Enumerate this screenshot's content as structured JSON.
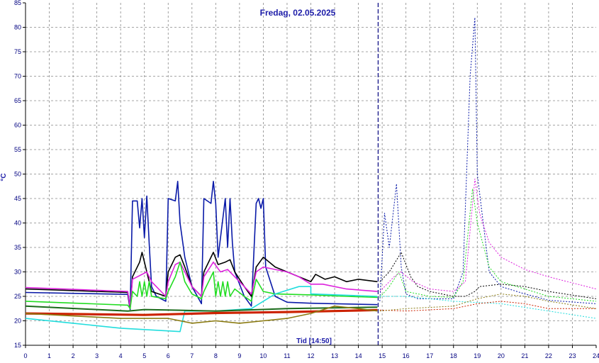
{
  "chart_data": {
    "type": "line",
    "title": "Fredag, 02.05.2025",
    "ylabel": "°C",
    "xlabel": "Tid [14:50]",
    "xlim": [
      0,
      24
    ],
    "ylim": [
      15,
      85
    ],
    "x_ticks": [
      "0",
      "1",
      "2",
      "3",
      "4",
      "5",
      "6",
      "7",
      "8",
      "9",
      "10",
      "11",
      "12",
      "13",
      "14",
      "15",
      "16",
      "17",
      "18",
      "19",
      "20",
      "21",
      "22",
      "23",
      "24"
    ],
    "y_ticks": [
      "15",
      "20",
      "25",
      "30",
      "35",
      "40",
      "45",
      "50",
      "55",
      "60",
      "65",
      "70",
      "75",
      "80",
      "85"
    ],
    "grid": true,
    "now_marker": 14.83,
    "series": [
      {
        "color": "#0a1aa8",
        "values": [
          [
            0,
            25.8
          ],
          [
            4.3,
            25.4
          ],
          [
            4.4,
            22.3
          ],
          [
            4.5,
            44.5
          ],
          [
            4.7,
            44.5
          ],
          [
            4.8,
            39
          ],
          [
            4.9,
            45
          ],
          [
            5.0,
            37
          ],
          [
            5.1,
            45.5
          ],
          [
            5.2,
            36
          ],
          [
            5.3,
            27
          ],
          [
            5.5,
            25
          ],
          [
            5.9,
            24
          ],
          [
            6.0,
            45
          ],
          [
            6.3,
            44.5
          ],
          [
            6.4,
            48.5
          ],
          [
            6.5,
            40
          ],
          [
            6.7,
            33
          ],
          [
            7.0,
            27
          ],
          [
            7.4,
            23.5
          ],
          [
            7.5,
            45
          ],
          [
            7.8,
            44
          ],
          [
            7.9,
            48.5
          ],
          [
            8.0,
            44
          ],
          [
            8.1,
            33
          ],
          [
            8.4,
            45
          ],
          [
            8.5,
            35
          ],
          [
            8.6,
            45
          ],
          [
            8.7,
            36
          ],
          [
            8.8,
            30
          ],
          [
            9.2,
            25
          ],
          [
            9.5,
            23
          ],
          [
            9.7,
            44
          ],
          [
            9.8,
            45
          ],
          [
            9.9,
            43
          ],
          [
            10.0,
            45
          ],
          [
            10.1,
            31
          ],
          [
            10.5,
            25
          ],
          [
            11.0,
            23.8
          ],
          [
            12.0,
            23.6
          ],
          [
            14.8,
            23.3
          ]
        ]
      },
      {
        "color": "#000000",
        "values": [
          [
            0,
            26.5
          ],
          [
            4.3,
            25.8
          ],
          [
            4.4,
            22.5
          ],
          [
            4.5,
            29
          ],
          [
            4.8,
            32
          ],
          [
            4.9,
            34
          ],
          [
            5.1,
            30
          ],
          [
            5.3,
            26
          ],
          [
            5.9,
            25
          ],
          [
            6.0,
            30
          ],
          [
            6.3,
            33
          ],
          [
            6.5,
            33.5
          ],
          [
            6.7,
            31
          ],
          [
            7.0,
            27
          ],
          [
            7.4,
            25
          ],
          [
            7.5,
            30
          ],
          [
            7.9,
            34
          ],
          [
            8.1,
            31.5
          ],
          [
            8.4,
            32
          ],
          [
            8.6,
            32.5
          ],
          [
            8.8,
            30
          ],
          [
            9.2,
            27
          ],
          [
            9.5,
            25
          ],
          [
            9.7,
            31
          ],
          [
            10.0,
            33
          ],
          [
            10.5,
            31
          ],
          [
            11.0,
            30
          ],
          [
            11.5,
            29
          ],
          [
            12.0,
            28
          ],
          [
            12.2,
            29.5
          ],
          [
            12.6,
            28.5
          ],
          [
            13.0,
            29
          ],
          [
            13.5,
            28
          ],
          [
            14.0,
            28.5
          ],
          [
            14.8,
            28
          ]
        ]
      },
      {
        "color": "#dd22dd",
        "values": [
          [
            0,
            26.8
          ],
          [
            4.3,
            26.0
          ],
          [
            4.4,
            22.8
          ],
          [
            4.5,
            28.5
          ],
          [
            5.1,
            30
          ],
          [
            5.3,
            28
          ],
          [
            5.9,
            25
          ],
          [
            6.0,
            28
          ],
          [
            6.3,
            31.5
          ],
          [
            6.5,
            32
          ],
          [
            6.7,
            30
          ],
          [
            7.0,
            27
          ],
          [
            7.4,
            25
          ],
          [
            7.5,
            29
          ],
          [
            7.9,
            32
          ],
          [
            8.2,
            30
          ],
          [
            8.5,
            30.5
          ],
          [
            8.8,
            29
          ],
          [
            9.2,
            27
          ],
          [
            9.5,
            25.5
          ],
          [
            9.7,
            30
          ],
          [
            10.0,
            31
          ],
          [
            10.5,
            30.5
          ],
          [
            11.0,
            30
          ],
          [
            11.5,
            29
          ],
          [
            12.0,
            27.5
          ],
          [
            12.5,
            27.5
          ],
          [
            13.5,
            26.5
          ],
          [
            14.8,
            26
          ]
        ]
      },
      {
        "color": "#22dd22",
        "values": [
          [
            0,
            24
          ],
          [
            4.3,
            23.2
          ],
          [
            4.4,
            22.5
          ],
          [
            4.5,
            26
          ],
          [
            4.7,
            25
          ],
          [
            4.8,
            28
          ],
          [
            4.9,
            25
          ],
          [
            5.0,
            28
          ],
          [
            5.1,
            25
          ],
          [
            5.2,
            28
          ],
          [
            5.3,
            25
          ],
          [
            5.9,
            24.5
          ],
          [
            6.0,
            26
          ],
          [
            6.3,
            29
          ],
          [
            6.5,
            32
          ],
          [
            6.7,
            28
          ],
          [
            7.0,
            25.5
          ],
          [
            7.4,
            24.5
          ],
          [
            7.5,
            26
          ],
          [
            7.9,
            30
          ],
          [
            8.0,
            25
          ],
          [
            8.1,
            28
          ],
          [
            8.2,
            25
          ],
          [
            8.3,
            28
          ],
          [
            8.4,
            25
          ],
          [
            8.5,
            28
          ],
          [
            8.6,
            25
          ],
          [
            8.8,
            26.5
          ],
          [
            9.2,
            25
          ],
          [
            9.5,
            24
          ],
          [
            9.7,
            28.5
          ],
          [
            10.0,
            26
          ],
          [
            10.5,
            25.5
          ],
          [
            12.0,
            25.3
          ],
          [
            13.5,
            25
          ],
          [
            14.8,
            24.8
          ]
        ]
      },
      {
        "color": "#22dddd",
        "values": [
          [
            0,
            20.5
          ],
          [
            2.0,
            19.5
          ],
          [
            4.0,
            18.5
          ],
          [
            6.5,
            17.8
          ],
          [
            6.7,
            22.0
          ],
          [
            8.0,
            22.0
          ],
          [
            9.5,
            22.5
          ],
          [
            10.5,
            25.5
          ],
          [
            11.5,
            27.0
          ],
          [
            12.0,
            27.0
          ],
          [
            12.0,
            25.5
          ],
          [
            14.8,
            25.0
          ]
        ]
      },
      {
        "color": "#cc2200",
        "values": [
          [
            0,
            21.5
          ],
          [
            5.0,
            21.2
          ],
          [
            8.0,
            21.6
          ],
          [
            11.0,
            21.8
          ],
          [
            13.0,
            22.0
          ],
          [
            14.8,
            22.2
          ]
        ]
      },
      {
        "color": "#1a6a1a",
        "values": [
          [
            0,
            23
          ],
          [
            4.3,
            22.0
          ],
          [
            5.0,
            22.3
          ],
          [
            8.0,
            22.0
          ],
          [
            11.0,
            22.5
          ],
          [
            14.8,
            22.8
          ]
        ]
      },
      {
        "color": "#8a7a10",
        "values": [
          [
            0,
            21.5
          ],
          [
            4.0,
            20.5
          ],
          [
            6.0,
            20.5
          ],
          [
            7.0,
            19.5
          ],
          [
            8.0,
            20.0
          ],
          [
            9.0,
            19.5
          ],
          [
            10.0,
            20.0
          ],
          [
            11.0,
            20.5
          ],
          [
            12.0,
            21.5
          ],
          [
            13.0,
            23.0
          ],
          [
            14.0,
            22.5
          ],
          [
            14.8,
            22.0
          ]
        ]
      }
    ],
    "forecast": [
      {
        "color": "#0a1aa8",
        "values": [
          [
            14.9,
            24
          ],
          [
            15.1,
            42
          ],
          [
            15.3,
            35
          ],
          [
            15.6,
            48
          ],
          [
            15.8,
            31
          ],
          [
            16.0,
            25.5
          ],
          [
            16.5,
            24.5
          ],
          [
            18.0,
            24.5
          ],
          [
            18.4,
            30
          ],
          [
            18.7,
            70
          ],
          [
            18.9,
            82
          ],
          [
            19.0,
            50
          ],
          [
            19.5,
            30
          ],
          [
            20.0,
            27
          ],
          [
            21.0,
            25.5
          ],
          [
            22.0,
            24.2
          ],
          [
            24,
            23.5
          ]
        ]
      },
      {
        "color": "#000000",
        "values": [
          [
            14.9,
            28
          ],
          [
            15.3,
            30
          ],
          [
            15.8,
            34
          ],
          [
            16.2,
            29
          ],
          [
            16.5,
            27
          ],
          [
            17.0,
            26
          ],
          [
            18.0,
            25
          ],
          [
            18.5,
            25
          ],
          [
            18.9,
            26
          ],
          [
            19.1,
            27
          ],
          [
            20.0,
            27.5
          ],
          [
            21.0,
            27
          ],
          [
            22.0,
            26
          ],
          [
            24,
            24.5
          ]
        ]
      },
      {
        "color": "#dd22dd",
        "values": [
          [
            14.9,
            26
          ],
          [
            15.5,
            29
          ],
          [
            15.8,
            30
          ],
          [
            16.3,
            28
          ],
          [
            17.0,
            26.5
          ],
          [
            18.0,
            26
          ],
          [
            18.5,
            28
          ],
          [
            18.9,
            49
          ],
          [
            19.1,
            42
          ],
          [
            19.5,
            36
          ],
          [
            20.0,
            33
          ],
          [
            21.0,
            30.5
          ],
          [
            22.0,
            29
          ],
          [
            24,
            26.5
          ]
        ]
      },
      {
        "color": "#22dd22",
        "values": [
          [
            14.9,
            24.8
          ],
          [
            15.3,
            27
          ],
          [
            15.7,
            30
          ],
          [
            16.0,
            26
          ],
          [
            17.0,
            25
          ],
          [
            18.0,
            24.8
          ],
          [
            18.4,
            28
          ],
          [
            18.8,
            47
          ],
          [
            19.0,
            40
          ],
          [
            19.5,
            31
          ],
          [
            20.0,
            28
          ],
          [
            21.0,
            26.5
          ],
          [
            22.0,
            25
          ],
          [
            24,
            24
          ]
        ]
      },
      {
        "color": "#22dddd",
        "values": [
          [
            14.9,
            25
          ],
          [
            16.0,
            25
          ],
          [
            18.0,
            24
          ],
          [
            20.0,
            23.5
          ],
          [
            22.0,
            22
          ],
          [
            24,
            20.5
          ]
        ]
      },
      {
        "color": "#cc2200",
        "values": [
          [
            14.9,
            22.2
          ],
          [
            16.0,
            22
          ],
          [
            18.0,
            22.5
          ],
          [
            19.0,
            23.5
          ],
          [
            20.0,
            24
          ],
          [
            21.0,
            23.5
          ],
          [
            22.0,
            22.5
          ],
          [
            24,
            22.5
          ]
        ]
      },
      {
        "color": "#8a7a10",
        "values": [
          [
            14.9,
            22
          ],
          [
            16.0,
            22.5
          ],
          [
            18.0,
            23
          ],
          [
            19.0,
            24.5
          ],
          [
            20.0,
            25.5
          ],
          [
            21.0,
            25
          ],
          [
            22.0,
            24
          ],
          [
            24,
            22.5
          ]
        ]
      }
    ]
  }
}
